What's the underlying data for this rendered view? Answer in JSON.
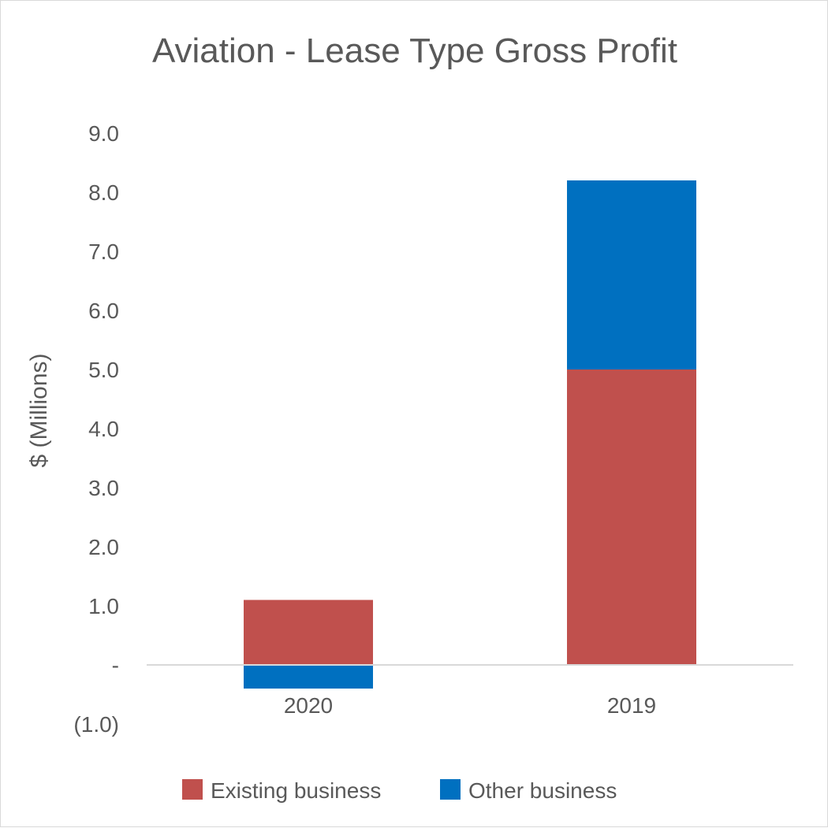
{
  "chart_data": {
    "type": "bar",
    "stacked": true,
    "title": "Aviation - Lease Type Gross Profit",
    "xlabel": "",
    "ylabel": "$ (Millions)",
    "ylim": [
      -1.0,
      9.0
    ],
    "yticks": [
      {
        "value": 9.0,
        "label": "9.0"
      },
      {
        "value": 8.0,
        "label": "8.0"
      },
      {
        "value": 7.0,
        "label": "7.0"
      },
      {
        "value": 6.0,
        "label": "6.0"
      },
      {
        "value": 5.0,
        "label": "5.0"
      },
      {
        "value": 4.0,
        "label": "4.0"
      },
      {
        "value": 3.0,
        "label": "3.0"
      },
      {
        "value": 2.0,
        "label": "2.0"
      },
      {
        "value": 1.0,
        "label": "1.0"
      },
      {
        "value": 0,
        "label": "-"
      },
      {
        "value": -1.0,
        "label": "(1.0)"
      }
    ],
    "categories": [
      "2020",
      "2019"
    ],
    "series": [
      {
        "name": "Existing business",
        "color": "#c0504d",
        "values": [
          1.1,
          5.0
        ]
      },
      {
        "name": "Other business",
        "color": "#0070c0",
        "values": [
          -0.4,
          3.2
        ]
      }
    ],
    "grid": false,
    "legend": "bottom"
  }
}
